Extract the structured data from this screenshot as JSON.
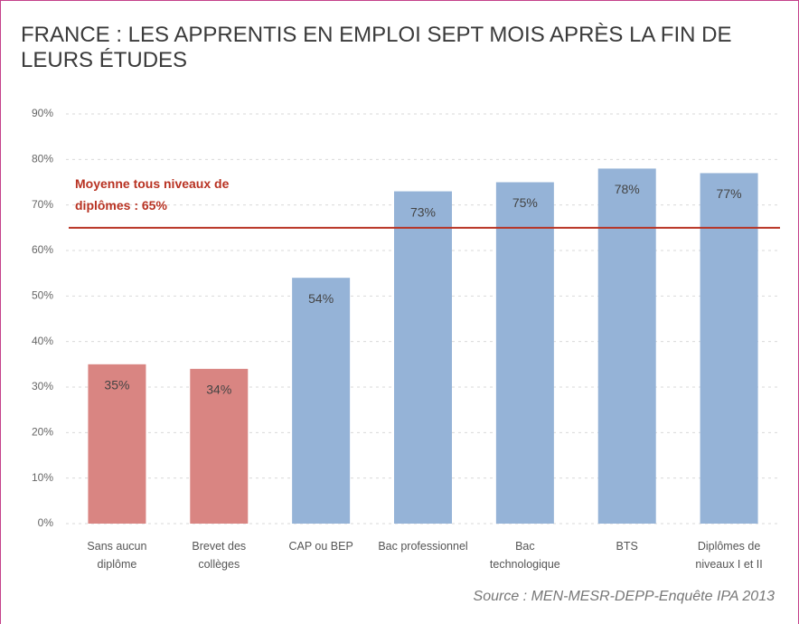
{
  "chart_data": {
    "type": "bar",
    "title": "FRANCE : LES APPRENTIS EN EMPLOI SEPT MOIS APRÈS LA FIN DE LEURS ÉTUDES",
    "categories": [
      "Sans aucun diplôme",
      "Brevet des collèges",
      "CAP ou BEP",
      "Bac professionnel",
      "Bac technologique",
      "BTS",
      "Diplômes de niveaux I et II"
    ],
    "values": [
      35,
      34,
      54,
      73,
      75,
      78,
      77
    ],
    "value_labels": [
      "35%",
      "34%",
      "54%",
      "73%",
      "75%",
      "78%",
      "77%"
    ],
    "colors": [
      "#d98582",
      "#d98582",
      "#95b3d7",
      "#95b3d7",
      "#95b3d7",
      "#95b3d7",
      "#95b3d7"
    ],
    "ylim": [
      0,
      90
    ],
    "yticks": [
      {
        "value": 0,
        "label": "0%"
      },
      {
        "value": 10,
        "label": "10%"
      },
      {
        "value": 20,
        "label": "20%"
      },
      {
        "value": 30,
        "label": "30%"
      },
      {
        "value": 40,
        "label": "40%"
      },
      {
        "value": 50,
        "label": "50%"
      },
      {
        "value": 60,
        "label": "60%"
      },
      {
        "value": 70,
        "label": "70%"
      },
      {
        "value": 80,
        "label": "80%"
      },
      {
        "value": 90,
        "label": "90%"
      }
    ],
    "grid": true,
    "reference_line": {
      "value": 65,
      "label": "Moyenne tous niveaux de diplômes : 65%",
      "color": "#b83222"
    },
    "source": "Source : MEN-MESR-DEPP-Enquête IPA 2013"
  }
}
